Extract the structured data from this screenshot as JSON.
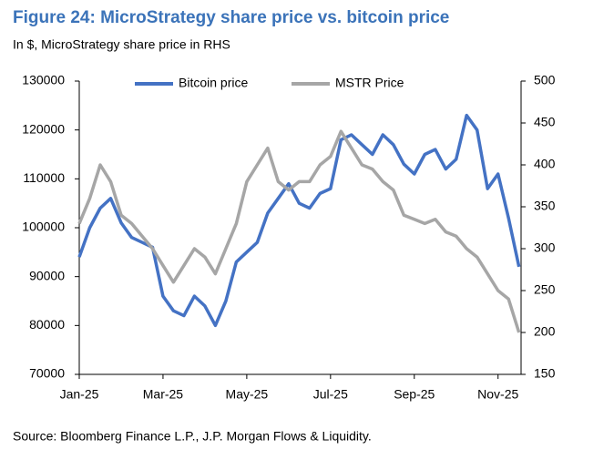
{
  "chart_data": {
    "type": "line",
    "title": "Figure 24: MicroStrategy share price vs. bitcoin price",
    "subtitle": "In $, MicroStrategy share price in RHS",
    "source": "Source: Bloomberg Finance L.P., J.P. Morgan Flows & Liquidity.",
    "x": [
      0,
      0.25,
      0.5,
      0.75,
      1,
      1.25,
      1.5,
      1.75,
      2,
      2.25,
      2.5,
      2.75,
      3,
      3.25,
      3.5,
      3.75,
      4,
      4.25,
      4.5,
      4.75,
      5,
      5.25,
      5.5,
      5.75,
      6,
      6.25,
      6.5,
      6.75,
      7,
      7.25,
      7.5,
      7.75,
      8,
      8.25,
      8.5,
      8.75,
      9,
      9.25,
      9.5,
      9.75,
      10,
      10.25,
      10.5
    ],
    "series": [
      {
        "name": "Bitcoin price",
        "color": "#4472c4",
        "axis": "y",
        "values": [
          94000,
          100000,
          104000,
          106000,
          101000,
          98000,
          97000,
          96000,
          86000,
          83000,
          82000,
          86000,
          84000,
          80000,
          85000,
          93000,
          95000,
          97000,
          103000,
          106000,
          109000,
          105000,
          104000,
          107000,
          108000,
          118000,
          119000,
          117000,
          115000,
          119000,
          117000,
          113000,
          111000,
          115000,
          116000,
          112000,
          114000,
          123000,
          120000,
          108000,
          111000,
          102000,
          92000
        ]
      },
      {
        "name": "MSTR Price",
        "color": "#a6a6a6",
        "axis": "y2",
        "values": [
          330,
          360,
          400,
          380,
          340,
          330,
          315,
          300,
          280,
          260,
          280,
          300,
          290,
          270,
          300,
          330,
          380,
          400,
          420,
          380,
          370,
          380,
          380,
          400,
          410,
          440,
          420,
          400,
          395,
          380,
          370,
          340,
          335,
          330,
          335,
          320,
          315,
          300,
          290,
          270,
          250,
          240,
          200
        ]
      }
    ],
    "xlim": [
      0,
      10.55
    ],
    "xticks": [
      {
        "value": 0,
        "label": "Jan-25"
      },
      {
        "value": 2,
        "label": "Mar-25"
      },
      {
        "value": 4,
        "label": "May-25"
      },
      {
        "value": 6,
        "label": "Jul-25"
      },
      {
        "value": 8,
        "label": "Sep-25"
      },
      {
        "value": 10,
        "label": "Nov-25"
      }
    ],
    "ylim": [
      70000,
      130000
    ],
    "yticks": [
      70000,
      80000,
      90000,
      100000,
      110000,
      120000,
      130000
    ],
    "y2lim": [
      150,
      500
    ],
    "y2ticks": [
      150,
      200,
      250,
      300,
      350,
      400,
      450,
      500
    ],
    "legend": "top"
  }
}
